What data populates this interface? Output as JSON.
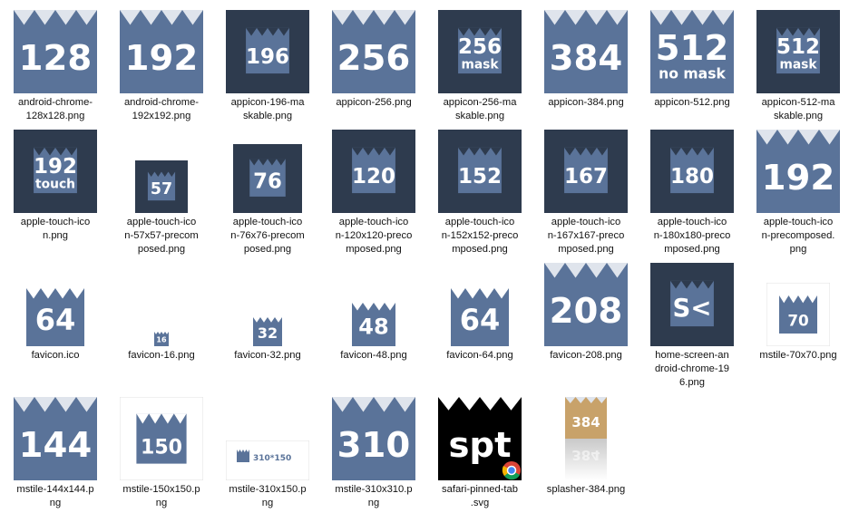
{
  "colors": {
    "blue": "#5a7399",
    "dark": "#2e3b4e",
    "crown": "#dfe4ec",
    "white": "#ffffff",
    "gold": "#c8a26a"
  },
  "files": [
    {
      "name": "android-chrome-\n128x128.png",
      "text": "128",
      "sub": "",
      "style": "crown-light",
      "size": 92
    },
    {
      "name": "android-chrome-\n192x192.png",
      "text": "192",
      "sub": "",
      "style": "crown-light",
      "size": 92
    },
    {
      "name": "appicon-196-ma\nskable.png",
      "text": "196",
      "sub": "",
      "style": "dark-mask",
      "size": 92
    },
    {
      "name": "appicon-256.png",
      "text": "256",
      "sub": "",
      "style": "crown-light",
      "size": 92
    },
    {
      "name": "appicon-256-ma\nskable.png",
      "text": "256",
      "sub": "mask",
      "style": "dark-mask",
      "size": 92
    },
    {
      "name": "appicon-384.png",
      "text": "384",
      "sub": "",
      "style": "crown-light",
      "size": 92
    },
    {
      "name": "appicon-512.png",
      "text": "512",
      "sub": "no mask",
      "style": "crown-light",
      "size": 92
    },
    {
      "name": "appicon-512-ma\nskable.png",
      "text": "512",
      "sub": "mask",
      "style": "dark-mask",
      "size": 92
    },
    {
      "name": "apple-touch-ico\nn.png",
      "text": "192",
      "sub": "touch",
      "style": "dark-mask",
      "size": 92
    },
    {
      "name": "apple-touch-ico\nn-57x57-precom\nposed.png",
      "text": "57",
      "sub": "",
      "style": "dark-mask",
      "size": 58
    },
    {
      "name": "apple-touch-ico\nn-76x76-precom\nposed.png",
      "text": "76",
      "sub": "",
      "style": "dark-mask",
      "size": 76
    },
    {
      "name": "apple-touch-ico\nn-120x120-preco\nmposed.png",
      "text": "120",
      "sub": "",
      "style": "dark-mask",
      "size": 92
    },
    {
      "name": "apple-touch-ico\nn-152x152-preco\nmposed.png",
      "text": "152",
      "sub": "",
      "style": "dark-mask",
      "size": 92
    },
    {
      "name": "apple-touch-ico\nn-167x167-preco\nmposed.png",
      "text": "167",
      "sub": "",
      "style": "dark-mask",
      "size": 92
    },
    {
      "name": "apple-touch-ico\nn-180x180-preco\nmposed.png",
      "text": "180",
      "sub": "",
      "style": "dark-mask",
      "size": 92
    },
    {
      "name": "apple-touch-ico\nn-precomposed.\npng",
      "text": "192",
      "sub": "",
      "style": "crown-light",
      "size": 92
    },
    {
      "name": "favicon.ico",
      "text": "64",
      "sub": "",
      "style": "crown-white",
      "size": 64
    },
    {
      "name": "favicon-16.png",
      "text": "16",
      "sub": "",
      "style": "crown-white",
      "size": 16
    },
    {
      "name": "favicon-32.png",
      "text": "32",
      "sub": "",
      "style": "crown-white",
      "size": 32
    },
    {
      "name": "favicon-48.png",
      "text": "48",
      "sub": "",
      "style": "crown-white",
      "size": 48
    },
    {
      "name": "favicon-64.png",
      "text": "64",
      "sub": "",
      "style": "crown-white",
      "size": 64
    },
    {
      "name": "favicon-208.png",
      "text": "208",
      "sub": "",
      "style": "crown-light",
      "size": 92
    },
    {
      "name": "home-screen-an\ndroid-chrome-19\n6.png",
      "text": "S<",
      "sub": "",
      "style": "dark-mask",
      "size": 92
    },
    {
      "name": "mstile-70x70.png",
      "text": "70",
      "sub": "",
      "style": "mstile",
      "size": 70
    },
    {
      "name": "mstile-144x144.p\nng",
      "text": "144",
      "sub": "",
      "style": "crown-light",
      "size": 92
    },
    {
      "name": "mstile-150x150.p\nng",
      "text": "150",
      "sub": "",
      "style": "mstile",
      "size": 92
    },
    {
      "name": "mstile-310x150.p\nng",
      "text": "310*150",
      "sub": "",
      "style": "wide",
      "size": 92
    },
    {
      "name": "mstile-310x310.p\nng",
      "text": "310",
      "sub": "",
      "style": "crown-light",
      "size": 92
    },
    {
      "name": "safari-pinned-tab\n.svg",
      "text": "spt",
      "sub": "",
      "style": "black",
      "size": 92
    },
    {
      "name": "splasher-384.png",
      "text": "384",
      "sub": "",
      "style": "splasher",
      "size": 92
    }
  ]
}
